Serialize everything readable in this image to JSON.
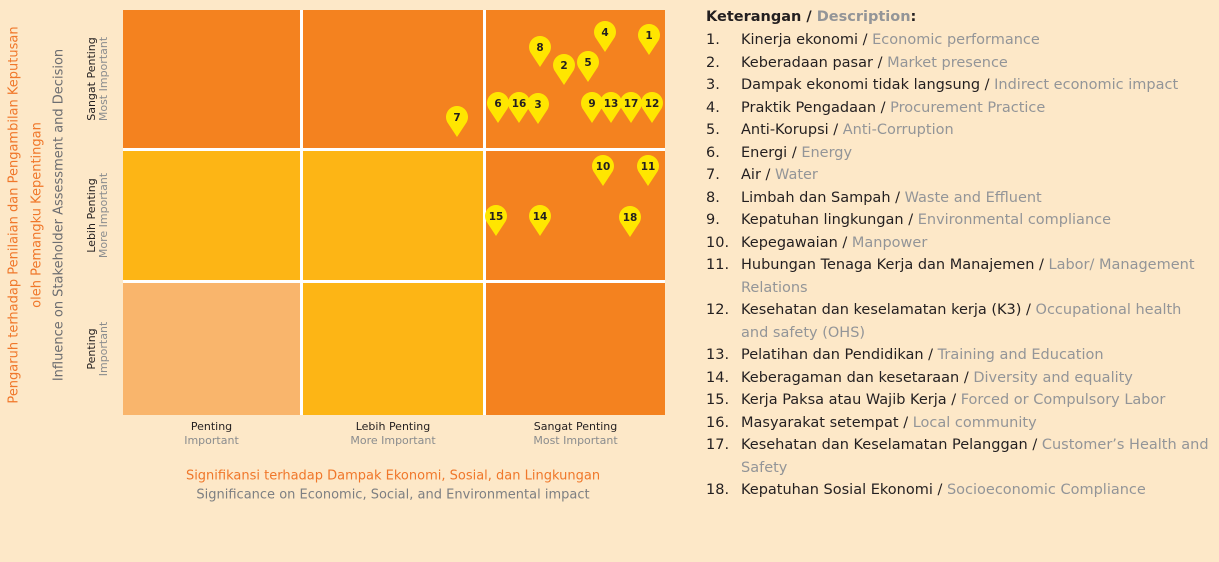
{
  "y_axis": {
    "title_id": [
      "Pengaruh terhadap Penilaian dan Pengambilan Keputusan",
      "oleh Pemangku Kepentingan"
    ],
    "title_en": "Influence on Stakeholder Assessment and Decision"
  },
  "rows": [
    {
      "id": "Sangat Penting",
      "en": "Most Important"
    },
    {
      "id": "Lebih Penting",
      "en": "More Important"
    },
    {
      "id": "Penting",
      "en": "Important"
    }
  ],
  "columns": [
    {
      "id": "Penting",
      "en": "Important"
    },
    {
      "id": "Lebih Penting",
      "en": "More Important"
    },
    {
      "id": "Sangat Penting",
      "en": "Most Important"
    }
  ],
  "x_axis": {
    "title_id": "Signifikansi terhadap Dampak Ekonomi, Sosial, dan Lingkungan",
    "title_en": "Significance on Economic, Social, and Environmental impact"
  },
  "pins": [
    "1",
    "2",
    "3",
    "4",
    "5",
    "6",
    "7",
    "8",
    "9",
    "10",
    "11",
    "12",
    "13",
    "14",
    "15",
    "16",
    "17",
    "18"
  ],
  "legend": {
    "title_id": "Keterangan",
    "separator": "/",
    "title_en": "Description",
    "title_end": ":",
    "items": [
      {
        "number": "1.",
        "id": "Kinerja ekonomi",
        "en": "Economic performance"
      },
      {
        "number": "2.",
        "id": "Keberadaan pasar",
        "en": "Market presence"
      },
      {
        "number": "3.",
        "id": "Dampak ekonomi tidak langsung",
        "en": "Indirect economic impact"
      },
      {
        "number": "4.",
        "id": "Praktik Pengadaan",
        "en": "Procurement Practice"
      },
      {
        "number": "5.",
        "id": "Anti-Korupsi",
        "en": "Anti-Corruption"
      },
      {
        "number": "6.",
        "id": "Energi",
        "en": "Energy"
      },
      {
        "number": "7.",
        "id": "Air",
        "en": "Water"
      },
      {
        "number": "8.",
        "id": "Limbah dan Sampah",
        "en": "Waste and Effluent"
      },
      {
        "number": "9.",
        "id": "Kepatuhan lingkungan",
        "en": "Environmental compliance"
      },
      {
        "number": "10.",
        "id": "Kepegawaian",
        "en": "Manpower"
      },
      {
        "number": "11.",
        "id": "Hubungan Tenaga Kerja dan Manajemen",
        "en": "Labor/ Management Relations"
      },
      {
        "number": "12.",
        "id": "Kesehatan dan keselamatan kerja (K3)",
        "en": "Occupational health and safety (OHS)"
      },
      {
        "number": "13.",
        "id": "Pelatihan dan Pendidikan",
        "en": "Training and Education"
      },
      {
        "number": "14.",
        "id": "Keberagaman dan kesetaraan",
        "en": "Diversity and equality"
      },
      {
        "number": "15.",
        "id": "Kerja Paksa atau Wajib Kerja",
        "en": "Forced or Compulsory Labor"
      },
      {
        "number": "16.",
        "id": "Masyarakat setempat",
        "en": "Local community"
      },
      {
        "number": "17.",
        "id": "Kesehatan dan Keselamatan Pelanggan",
        "en": "Customer’s Health and Safety"
      },
      {
        "number": "18.",
        "id": "Kepatuhan Sosial Ekonomi",
        "en": "Socioeconomic Compliance"
      }
    ]
  }
}
